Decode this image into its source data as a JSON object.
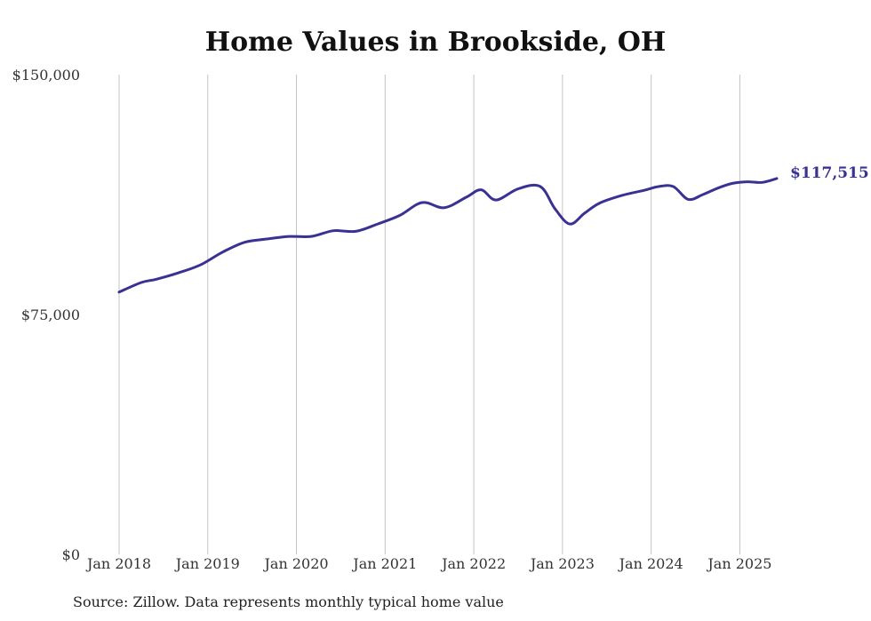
{
  "chart_data": {
    "type": "line",
    "title": "Home Values in Brookside, OH",
    "source": "Source: Zillow. Data represents monthly typical home value",
    "ylim": [
      0,
      150000
    ],
    "xlim": [
      "2018-01",
      "2025-06"
    ],
    "y_ticks": [
      {
        "value": 0,
        "label": "$0"
      },
      {
        "value": 75000,
        "label": "$75,000"
      },
      {
        "value": 150000,
        "label": "$150,000"
      }
    ],
    "x_ticks": [
      {
        "value": "2018-01",
        "label": "Jan 2018"
      },
      {
        "value": "2019-01",
        "label": "Jan 2019"
      },
      {
        "value": "2020-01",
        "label": "Jan 2020"
      },
      {
        "value": "2021-01",
        "label": "Jan 2021"
      },
      {
        "value": "2022-01",
        "label": "Jan 2022"
      },
      {
        "value": "2023-01",
        "label": "Jan 2023"
      },
      {
        "value": "2024-01",
        "label": "Jan 2024"
      },
      {
        "value": "2025-01",
        "label": "Jan 2025"
      }
    ],
    "vertical_grid": true,
    "line_color": "#3a3293",
    "end_label": "$117,515",
    "series": [
      {
        "x": [
          "2018-01",
          "2018-04",
          "2018-06",
          "2018-09",
          "2018-12",
          "2019-03",
          "2019-06",
          "2019-09",
          "2019-12",
          "2020-03",
          "2020-06",
          "2020-09",
          "2020-12",
          "2021-03",
          "2021-06",
          "2021-09",
          "2021-12",
          "2022-02",
          "2022-04",
          "2022-07",
          "2022-10",
          "2022-12",
          "2023-02",
          "2023-04",
          "2023-06",
          "2023-09",
          "2023-12",
          "2024-02",
          "2024-04",
          "2024-06",
          "2024-08",
          "2024-10",
          "2024-12",
          "2025-02",
          "2025-04",
          "2025-06"
        ],
        "values": [
          82000,
          85000,
          86000,
          88000,
          90500,
          94500,
          97600,
          98600,
          99400,
          99400,
          101200,
          101000,
          103300,
          106000,
          110000,
          108400,
          111700,
          114000,
          110800,
          114300,
          115000,
          108000,
          103300,
          106700,
          109800,
          112200,
          113800,
          115000,
          115000,
          111000,
          112500,
          114500,
          116000,
          116500,
          116300,
          117515
        ]
      }
    ]
  }
}
